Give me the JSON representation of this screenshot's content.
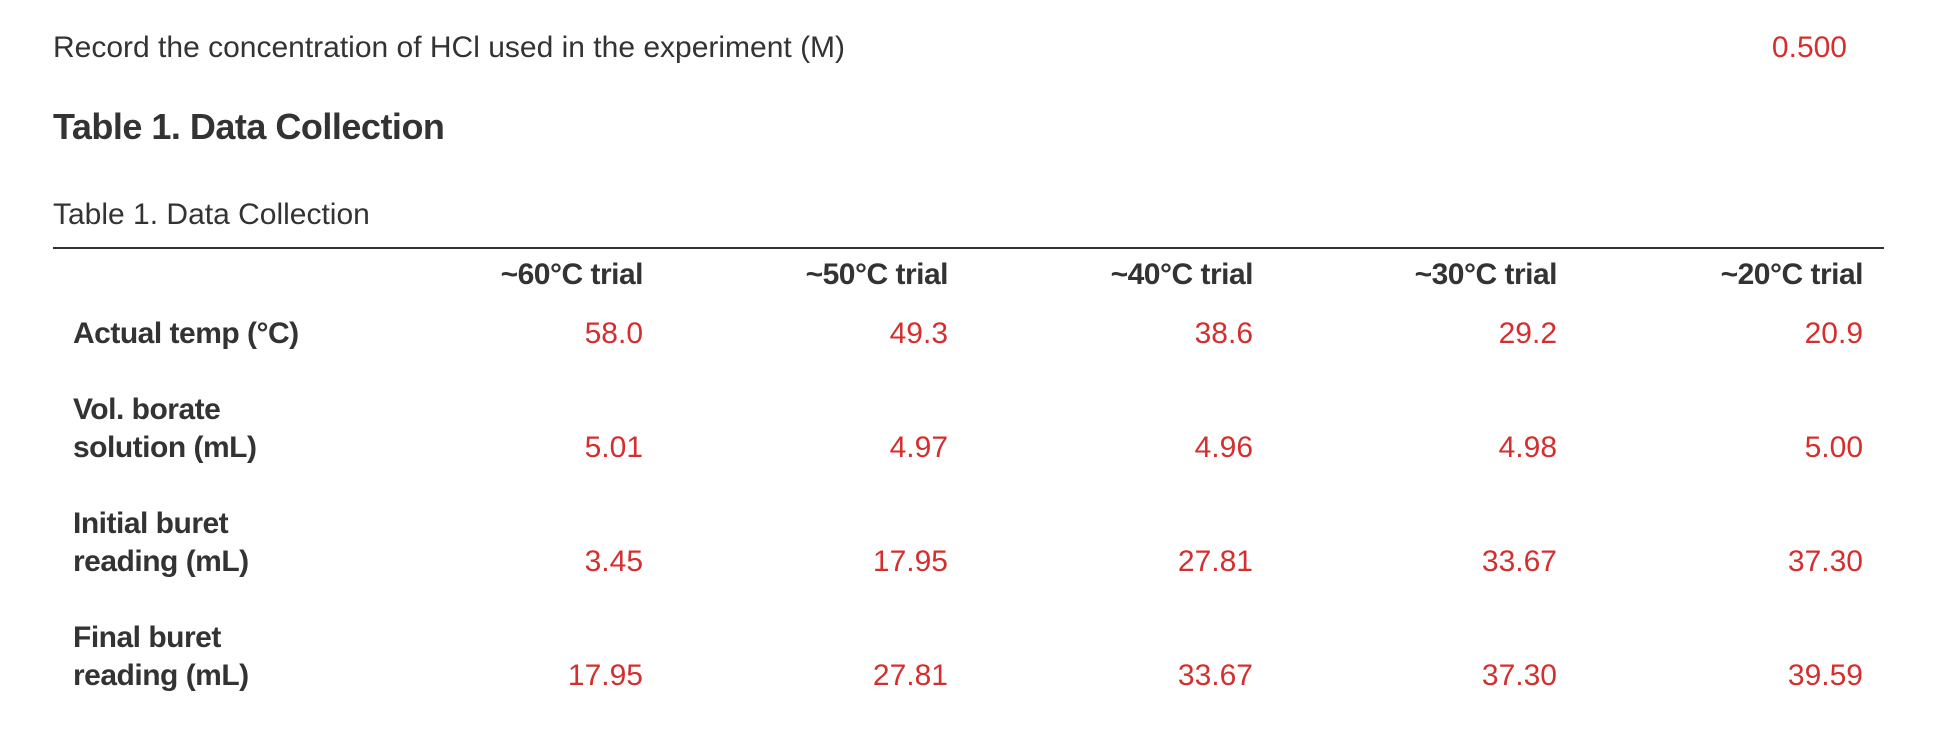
{
  "question": {
    "text": "Record the concentration of HCl used in the experiment (M)",
    "answer": "0.500"
  },
  "heading": "Table 1. Data Collection",
  "table": {
    "caption": "Table 1. Data Collection",
    "columns": [
      "~60°C trial",
      "~50°C trial",
      "~40°C trial",
      "~30°C trial",
      "~20°C trial"
    ],
    "rows": [
      {
        "label": "Actual temp (°C)",
        "values": [
          "58.0",
          "49.3",
          "38.6",
          "29.2",
          "20.9"
        ]
      },
      {
        "label": "Vol. borate solution (mL)",
        "values": [
          "5.01",
          "4.97",
          "4.96",
          "4.98",
          "5.00"
        ]
      },
      {
        "label": "Initial buret reading (mL)",
        "values": [
          "3.45",
          "17.95",
          "27.81",
          "33.67",
          "37.30"
        ]
      },
      {
        "label": "Final buret reading (mL)",
        "values": [
          "17.95",
          "27.81",
          "33.67",
          "37.30",
          "39.59"
        ]
      }
    ]
  }
}
